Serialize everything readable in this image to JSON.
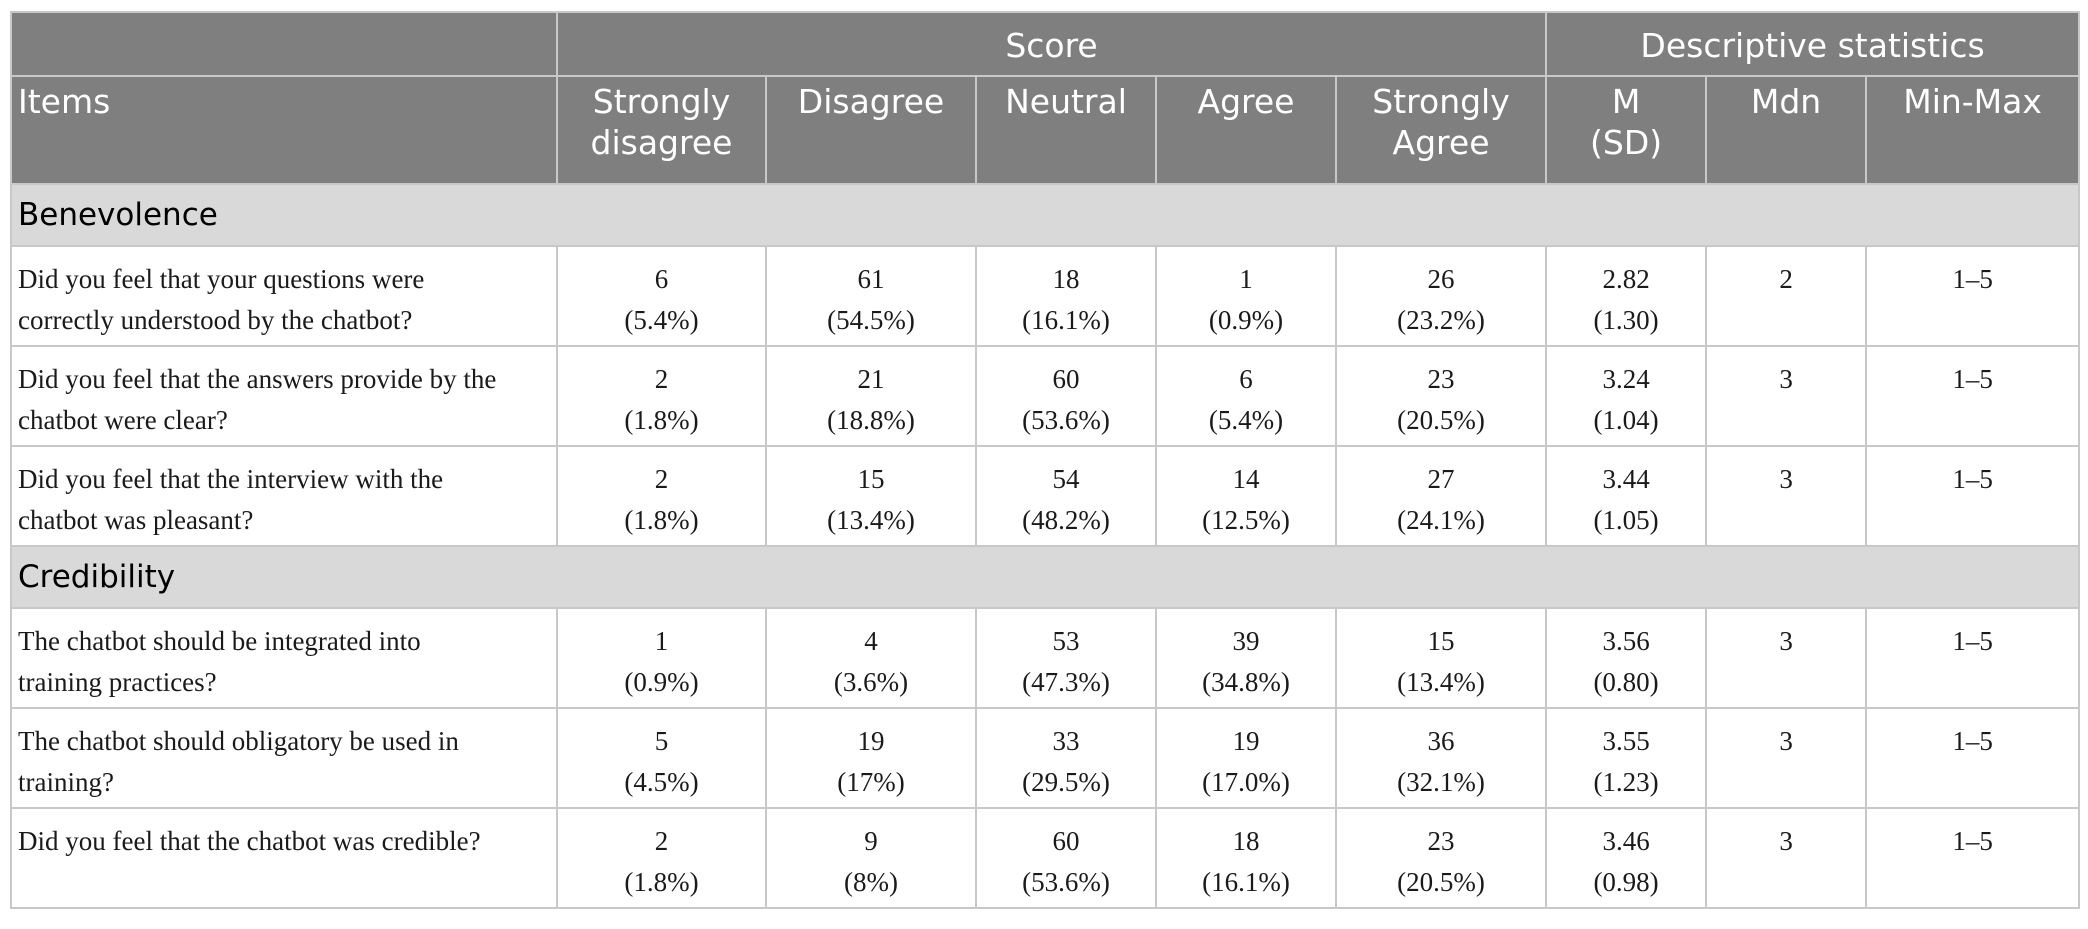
{
  "header": {
    "score_group": "Score",
    "stats_group": "Descriptive statistics",
    "items": "Items",
    "columns": [
      {
        "line1": "Strongly",
        "line2": "disagree"
      },
      {
        "line1": "Disagree",
        "line2": ""
      },
      {
        "line1": "Neutral",
        "line2": ""
      },
      {
        "line1": "Agree",
        "line2": ""
      },
      {
        "line1": "Strongly",
        "line2": "Agree"
      },
      {
        "line1": "M",
        "line2": "(SD)"
      },
      {
        "line1": "Mdn",
        "line2": ""
      },
      {
        "line1": "Min-Max",
        "line2": ""
      }
    ]
  },
  "sections": [
    {
      "title": "Benevolence",
      "rows": [
        {
          "item_line1": "Did you feel that your questions were",
          "item_line2": "correctly understood by the chatbot?",
          "cells": [
            {
              "v": "6",
              "p": "(5.4%)"
            },
            {
              "v": "61",
              "p": "(54.5%)"
            },
            {
              "v": "18",
              "p": "(16.1%)"
            },
            {
              "v": "1",
              "p": "(0.9%)"
            },
            {
              "v": "26",
              "p": "(23.2%)"
            },
            {
              "v": "2.82",
              "p": "(1.30)"
            },
            {
              "v": "2",
              "p": ""
            },
            {
              "v": "1–5",
              "p": ""
            }
          ]
        },
        {
          "item_line1": "Did you feel that the answers provide by the",
          "item_line2": "chatbot were clear?",
          "cells": [
            {
              "v": "2",
              "p": "(1.8%)"
            },
            {
              "v": "21",
              "p": "(18.8%)"
            },
            {
              "v": "60",
              "p": "(53.6%)"
            },
            {
              "v": "6",
              "p": "(5.4%)"
            },
            {
              "v": "23",
              "p": "(20.5%)"
            },
            {
              "v": "3.24",
              "p": "(1.04)"
            },
            {
              "v": "3",
              "p": ""
            },
            {
              "v": "1–5",
              "p": ""
            }
          ]
        },
        {
          "item_line1": "Did you feel that the interview with the",
          "item_line2": "chatbot was pleasant?",
          "cells": [
            {
              "v": "2",
              "p": "(1.8%)"
            },
            {
              "v": "15",
              "p": "(13.4%)"
            },
            {
              "v": "54",
              "p": "(48.2%)"
            },
            {
              "v": "14",
              "p": "(12.5%)"
            },
            {
              "v": "27",
              "p": "(24.1%)"
            },
            {
              "v": "3.44",
              "p": "(1.05)"
            },
            {
              "v": "3",
              "p": ""
            },
            {
              "v": "1–5",
              "p": ""
            }
          ]
        }
      ]
    },
    {
      "title": "Credibility",
      "rows": [
        {
          "item_line1": "The chatbot should be integrated into",
          "item_line2": "training practices?",
          "cells": [
            {
              "v": "1",
              "p": "(0.9%)"
            },
            {
              "v": "4",
              "p": "(3.6%)"
            },
            {
              "v": "53",
              "p": "(47.3%)"
            },
            {
              "v": "39",
              "p": "(34.8%)"
            },
            {
              "v": "15",
              "p": "(13.4%)"
            },
            {
              "v": "3.56",
              "p": "(0.80)"
            },
            {
              "v": "3",
              "p": ""
            },
            {
              "v": "1–5",
              "p": ""
            }
          ]
        },
        {
          "item_line1": "The chatbot should obligatory be used in",
          "item_line2": "training?",
          "cells": [
            {
              "v": "5",
              "p": "(4.5%)"
            },
            {
              "v": "19",
              "p": "(17%)"
            },
            {
              "v": "33",
              "p": "(29.5%)"
            },
            {
              "v": "19",
              "p": "(17.0%)"
            },
            {
              "v": "36",
              "p": "(32.1%)"
            },
            {
              "v": "3.55",
              "p": "(1.23)"
            },
            {
              "v": "3",
              "p": ""
            },
            {
              "v": "1–5",
              "p": ""
            }
          ]
        },
        {
          "item_line1": "Did you feel that the chatbot was credible?",
          "item_line2": "",
          "cells": [
            {
              "v": "2",
              "p": "(1.8%)"
            },
            {
              "v": "9",
              "p": "(8%)"
            },
            {
              "v": "60",
              "p": "(53.6%)"
            },
            {
              "v": "18",
              "p": "(16.1%)"
            },
            {
              "v": "23",
              "p": "(20.5%)"
            },
            {
              "v": "3.46",
              "p": "(0.98)"
            },
            {
              "v": "3",
              "p": ""
            },
            {
              "v": "1–5",
              "p": ""
            }
          ]
        }
      ]
    }
  ]
}
